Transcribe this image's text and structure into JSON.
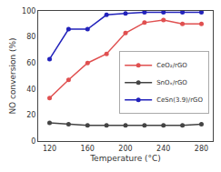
{
  "chart_data": {
    "type": "line",
    "x": [
      120,
      140,
      160,
      180,
      200,
      220,
      240,
      260,
      280
    ],
    "series": [
      {
        "name": "CeO₂/rGO",
        "color": "#e05050",
        "values": [
          33,
          47,
          60,
          67,
          83,
          91,
          93,
          90,
          90
        ]
      },
      {
        "name": "SnOₓ/rGO",
        "color": "#444444",
        "values": [
          14,
          13,
          12,
          12,
          12,
          12,
          12,
          12,
          13
        ]
      },
      {
        "name": "CeSn(3.9)/rGO",
        "color": "#2222bb",
        "values": [
          63,
          86,
          86,
          97,
          98,
          99,
          99,
          99,
          99
        ]
      }
    ],
    "marker": "circle",
    "xlabel": "Temperature (°C)",
    "ylabel": "NO conversion (%)",
    "xlim": [
      108,
      292
    ],
    "ylim": [
      0,
      100
    ],
    "xticks": [
      120,
      160,
      200,
      240,
      280
    ],
    "yticks": [
      0,
      20,
      40,
      60,
      80,
      100
    ],
    "grid": false,
    "legend": "right"
  }
}
